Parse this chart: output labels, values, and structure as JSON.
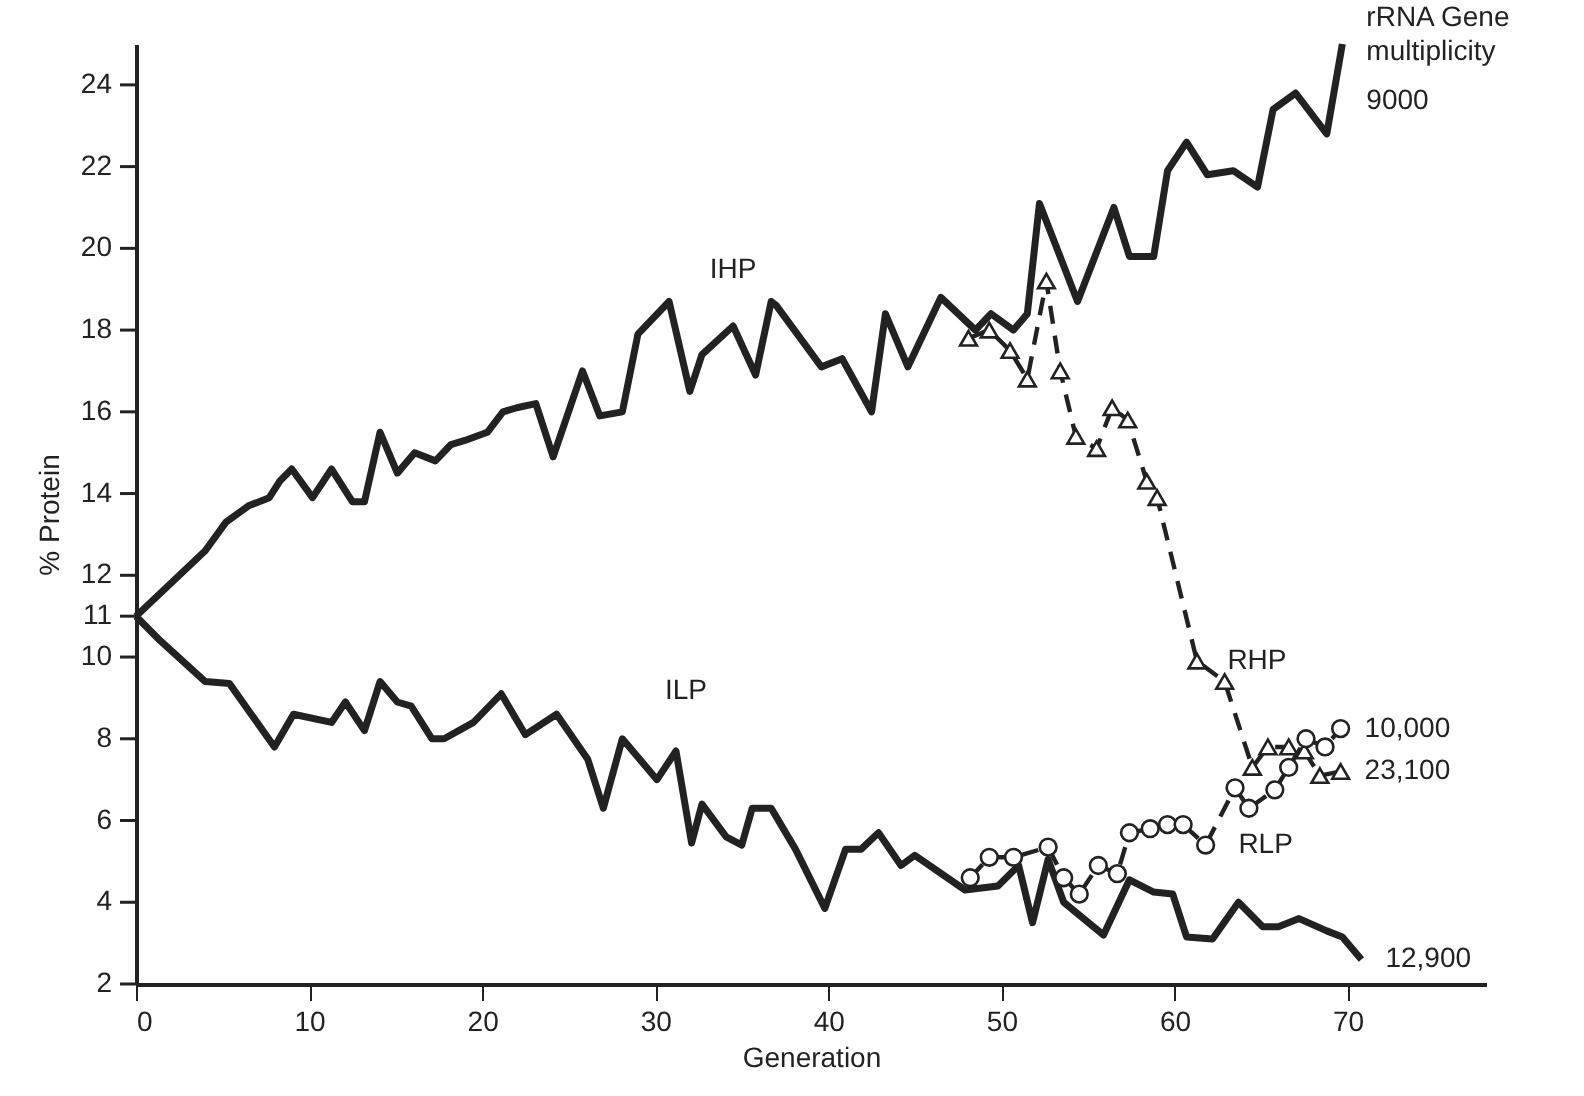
{
  "chart_data": {
    "type": "line",
    "xlabel": "Generation",
    "ylabel": "% Protein",
    "xlim": [
      0,
      78
    ],
    "xticks": [
      0,
      10,
      20,
      30,
      40,
      50,
      60,
      70
    ],
    "ylim": [
      2,
      25
    ],
    "yticks": [
      2,
      4,
      6,
      8,
      10,
      11,
      12,
      14,
      16,
      18,
      20,
      22,
      24
    ],
    "grid": false,
    "series": [
      {
        "name": "IHP",
        "color": "#222222",
        "marker": "none",
        "line_style": "solid",
        "x": [
          0,
          2,
          4,
          5.2,
          6.5,
          7.7,
          8.3,
          9.0,
          10.2,
          11.3,
          12.5,
          13.2,
          14.1,
          15.1,
          16.1,
          17.3,
          18.2,
          19.0,
          20.3,
          21.2,
          22.0,
          23.1,
          24.1,
          25.8,
          26.8,
          28.1,
          29.0,
          30.8,
          32.0,
          32.7,
          34.5,
          35.8,
          36.7,
          37.0,
          39.6,
          40.8,
          42.5,
          43.3,
          44.6,
          46.5,
          48.5,
          49.4,
          50.7,
          51.5,
          52.2,
          54.4,
          56.5,
          57.4,
          58.8,
          59.6,
          60.7,
          61.9,
          63.4,
          64.8,
          65.7,
          67.0,
          68.8,
          69.7
        ],
        "values": [
          11,
          11.8,
          12.6,
          13.3,
          13.7,
          13.9,
          14.3,
          14.6,
          13.9,
          14.6,
          13.8,
          13.8,
          15.5,
          14.5,
          15.0,
          14.8,
          15.2,
          15.3,
          15.5,
          16.0,
          16.1,
          16.2,
          14.9,
          17.0,
          15.9,
          16.0,
          17.9,
          18.7,
          16.5,
          17.4,
          18.1,
          16.9,
          18.7,
          18.6,
          17.1,
          17.3,
          16.0,
          18.4,
          17.1,
          18.8,
          18.0,
          18.4,
          18.0,
          18.4,
          21.1,
          18.7,
          21.0,
          19.8,
          19.8,
          21.9,
          22.6,
          21.8,
          21.9,
          21.5,
          23.4,
          23.8,
          22.8,
          25.0
        ]
      },
      {
        "name": "ILP",
        "color": "#222222",
        "marker": "none",
        "line_style": "solid",
        "x": [
          0,
          1.4,
          4.0,
          5.4,
          8.0,
          9.1,
          11.3,
          12.1,
          13.2,
          14.1,
          15.1,
          15.9,
          17.1,
          17.8,
          19.5,
          21.1,
          22.5,
          24.3,
          26.1,
          27.0,
          28.1,
          30.1,
          31.2,
          32.1,
          32.7,
          34.1,
          35.0,
          35.6,
          36.7,
          38.1,
          39.8,
          41.0,
          41.9,
          42.9,
          44.2,
          45.0,
          47.9,
          49.8,
          51.0,
          51.8,
          52.7,
          53.6,
          55.9,
          57.4,
          58.8,
          59.9,
          60.7,
          62.2,
          63.7,
          65.1,
          66.0,
          67.2,
          68.8,
          69.7,
          70.8
        ],
        "values": [
          11,
          10.4,
          9.4,
          9.35,
          7.8,
          8.6,
          8.4,
          8.9,
          8.2,
          9.4,
          8.9,
          8.8,
          8.0,
          8.0,
          8.4,
          9.1,
          8.1,
          8.6,
          7.5,
          6.3,
          8.0,
          7.0,
          7.7,
          5.45,
          6.4,
          5.6,
          5.4,
          6.3,
          6.3,
          5.3,
          3.85,
          5.3,
          5.3,
          5.7,
          4.9,
          5.15,
          4.3,
          4.4,
          4.9,
          3.5,
          5.05,
          4.0,
          3.2,
          4.55,
          4.25,
          4.2,
          3.15,
          3.1,
          4.0,
          3.4,
          3.4,
          3.6,
          3.3,
          3.15,
          2.6
        ]
      },
      {
        "name": "RHP",
        "color": "#222222",
        "marker": "triangle",
        "line_style": "dashed",
        "x": [
          48.1,
          49.3,
          50.5,
          51.5,
          52.6,
          53.4,
          54.3,
          55.5,
          56.4,
          57.3,
          58.4,
          59.0,
          61.3,
          62.9,
          64.5,
          65.4,
          66.6,
          67.5,
          68.4,
          69.6
        ],
        "values": [
          17.8,
          18.0,
          17.5,
          16.8,
          19.2,
          17.0,
          15.4,
          15.1,
          16.1,
          15.8,
          14.3,
          13.9,
          9.9,
          9.4,
          7.3,
          7.8,
          7.8,
          7.7,
          7.1,
          7.2
        ]
      },
      {
        "name": "RLP",
        "color": "#222222",
        "marker": "circle",
        "line_style": "dashed",
        "x": [
          48.2,
          49.3,
          50.7,
          52.7,
          53.6,
          54.5,
          55.6,
          56.7,
          57.4,
          58.6,
          59.6,
          60.5,
          61.8,
          63.5,
          64.3,
          65.8,
          66.6,
          67.6,
          68.7,
          69.6
        ],
        "values": [
          4.6,
          5.1,
          5.1,
          5.35,
          4.6,
          4.2,
          4.9,
          4.7,
          5.7,
          5.8,
          5.9,
          5.9,
          5.4,
          6.8,
          6.3,
          6.75,
          7.3,
          8.0,
          7.8,
          8.25
        ]
      }
    ],
    "annotations": [
      {
        "text": "rRNA Gene multiplicity",
        "x": 69.7,
        "y": 25.0
      },
      {
        "text": "9000",
        "x": 69.7,
        "y": 23.6
      },
      {
        "text": "10,000",
        "x": 69.6,
        "y": 8.25
      },
      {
        "text": "23,100",
        "x": 69.6,
        "y": 7.2
      },
      {
        "text": "12,900",
        "x": 70.8,
        "y": 2.6
      }
    ]
  }
}
